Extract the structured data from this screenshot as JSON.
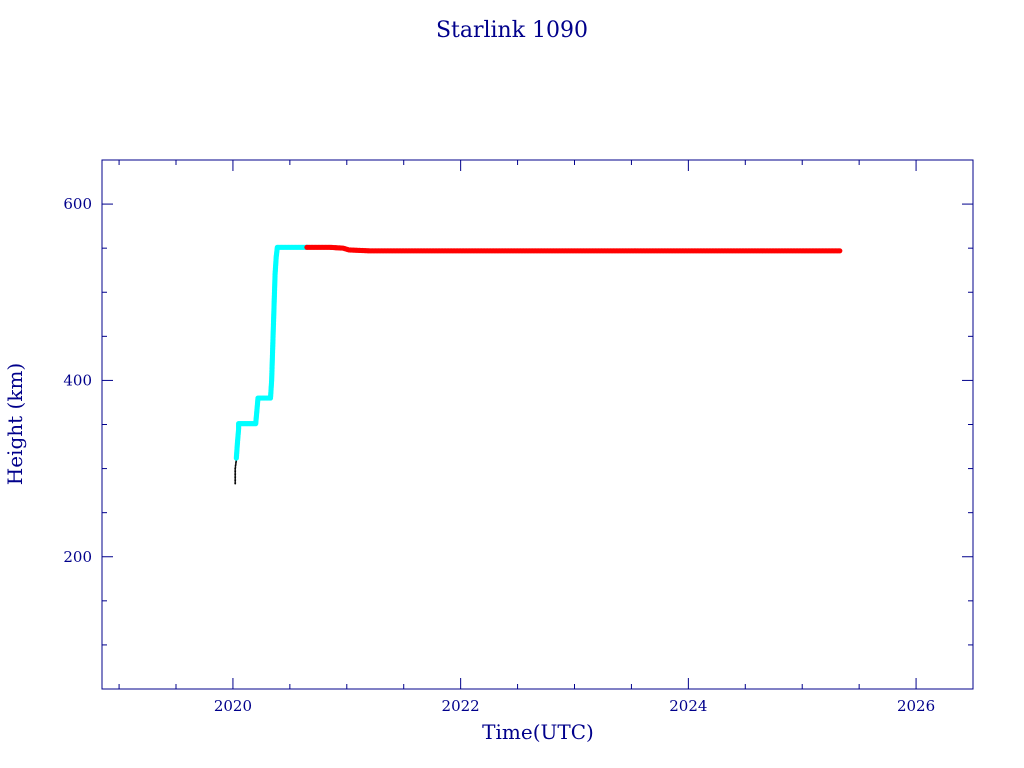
{
  "chart_data": {
    "type": "scatter",
    "title": "Starlink 1090",
    "xlabel": "Time(UTC)",
    "ylabel": "Height (km)",
    "xlim": [
      2018.85,
      2026.5
    ],
    "ylim": [
      50,
      650
    ],
    "x_ticks": [
      2020,
      2022,
      2024,
      2026
    ],
    "y_ticks": [
      200,
      400,
      600
    ],
    "grid": false,
    "colors": {
      "axis": "#00008b",
      "raising": "#00ffff",
      "operational": "#ff0000",
      "initial": "#000000"
    },
    "series": [
      {
        "color": "#000000",
        "points": [
          [
            2020.02,
            283
          ],
          [
            2020.02,
            300
          ],
          [
            2020.03,
            310
          ]
        ]
      },
      {
        "color": "#00ffff",
        "points": [
          [
            2020.03,
            312
          ],
          [
            2020.04,
            330
          ],
          [
            2020.05,
            345
          ],
          [
            2020.05,
            351
          ],
          [
            2020.1,
            351
          ],
          [
            2020.15,
            351
          ],
          [
            2020.2,
            351
          ],
          [
            2020.21,
            365
          ],
          [
            2020.22,
            380
          ],
          [
            2020.28,
            380
          ],
          [
            2020.33,
            380
          ],
          [
            2020.34,
            400
          ],
          [
            2020.35,
            440
          ],
          [
            2020.36,
            480
          ],
          [
            2020.37,
            520
          ],
          [
            2020.38,
            540
          ],
          [
            2020.39,
            551
          ],
          [
            2020.45,
            551
          ],
          [
            2020.55,
            551
          ],
          [
            2020.65,
            551
          ]
        ]
      },
      {
        "color": "#ff0000",
        "points": [
          [
            2020.65,
            551
          ],
          [
            2020.75,
            551
          ],
          [
            2020.85,
            551
          ],
          [
            2020.97,
            550
          ],
          [
            2021.02,
            548
          ],
          [
            2021.2,
            547
          ],
          [
            2021.5,
            547
          ],
          [
            2022.0,
            547
          ],
          [
            2022.5,
            547
          ],
          [
            2023.0,
            547
          ],
          [
            2023.5,
            547
          ],
          [
            2024.0,
            547
          ],
          [
            2024.5,
            547
          ],
          [
            2025.0,
            547
          ],
          [
            2025.33,
            547
          ]
        ]
      }
    ]
  }
}
